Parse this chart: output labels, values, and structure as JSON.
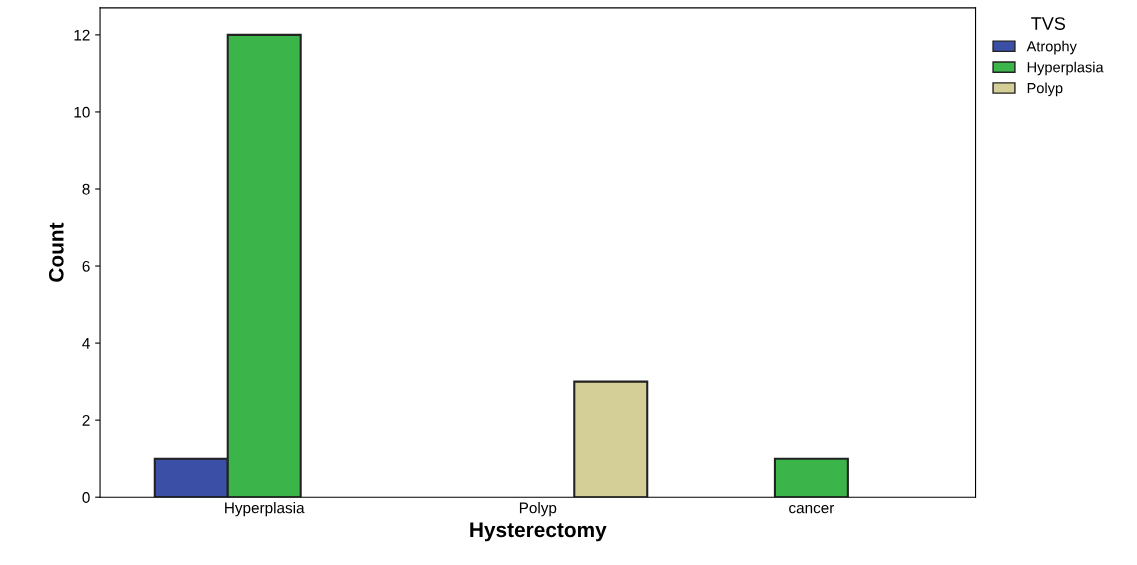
{
  "chart_data": {
    "type": "bar",
    "xlabel": "Hysterectomy",
    "ylabel": "Count",
    "legend_title": "TVS",
    "categories": [
      "Hyperplasia",
      "Polyp",
      "cancer"
    ],
    "series": [
      {
        "name": "Atrophy",
        "color": "#3b4fa6",
        "values": [
          1,
          null,
          null
        ]
      },
      {
        "name": "Hyperplasia",
        "color": "#3bb54a",
        "values": [
          12,
          null,
          1
        ]
      },
      {
        "name": "Polyp",
        "color": "#d4cf97",
        "values": [
          null,
          3,
          null
        ]
      }
    ],
    "ylim": [
      0,
      12.7
    ],
    "yticks": [
      0,
      2,
      4,
      6,
      8,
      10,
      12
    ],
    "grid": false,
    "legend": "right"
  }
}
